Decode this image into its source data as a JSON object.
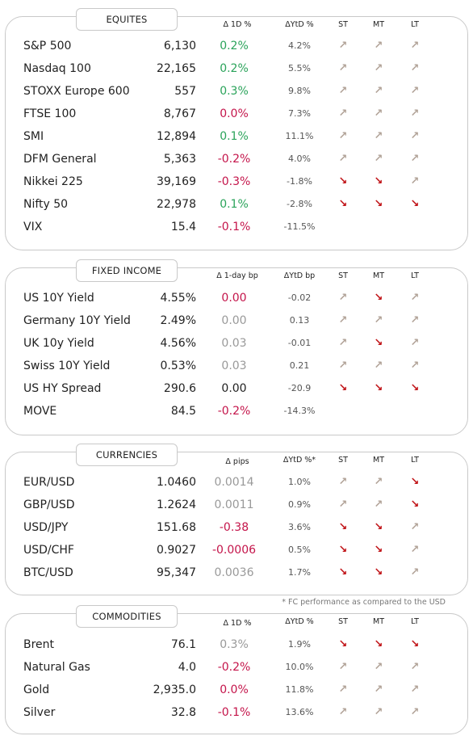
{
  "colors": {
    "pos": "#2aa35a",
    "neg": "#c4144a",
    "neutral": "#999999",
    "up_arrow": "#b2a398",
    "down_arrow": "#c01216",
    "text": "#222222"
  },
  "sections": [
    {
      "title": "EQUITES",
      "headers": {
        "chg": "Δ 1D %",
        "ytd": "ΔYtD %",
        "st": "ST",
        "mt": "MT",
        "lt": "LT"
      },
      "rows": [
        {
          "name": "S&P 500",
          "value": "6,130",
          "chg": "0.2%",
          "chg_tone": "pos",
          "ytd": "4.2%",
          "st": "up",
          "mt": "up",
          "lt": "up"
        },
        {
          "name": "Nasdaq 100",
          "value": "22,165",
          "chg": "0.2%",
          "chg_tone": "pos",
          "ytd": "5.5%",
          "st": "up",
          "mt": "up",
          "lt": "up"
        },
        {
          "name": "STOXX Europe 600",
          "value": "557",
          "chg": "0.3%",
          "chg_tone": "pos",
          "ytd": "9.8%",
          "st": "up",
          "mt": "up",
          "lt": "up"
        },
        {
          "name": "FTSE 100",
          "value": "8,767",
          "chg": "0.0%",
          "chg_tone": "neg",
          "ytd": "7.3%",
          "st": "up",
          "mt": "up",
          "lt": "up"
        },
        {
          "name": "SMI",
          "value": "12,894",
          "chg": "0.1%",
          "chg_tone": "pos",
          "ytd": "11.1%",
          "st": "up",
          "mt": "up",
          "lt": "up"
        },
        {
          "name": "DFM General",
          "value": "5,363",
          "chg": "-0.2%",
          "chg_tone": "neg",
          "ytd": "4.0%",
          "st": "up",
          "mt": "up",
          "lt": "up"
        },
        {
          "name": "Nikkei 225",
          "value": "39,169",
          "chg": "-0.3%",
          "chg_tone": "neg",
          "ytd": "-1.8%",
          "st": "down",
          "mt": "down",
          "lt": "up"
        },
        {
          "name": "Nifty  50",
          "value": "22,978",
          "chg": "0.1%",
          "chg_tone": "pos",
          "ytd": "-2.8%",
          "st": "down",
          "mt": "down",
          "lt": "down"
        },
        {
          "name": "VIX",
          "value": "15.4",
          "chg": "-0.1%",
          "chg_tone": "neg",
          "ytd": "-11.5%",
          "st": "",
          "mt": "",
          "lt": ""
        }
      ]
    },
    {
      "title": "FIXED INCOME",
      "headers": {
        "chg": "Δ 1-day bp",
        "ytd": "ΔYtD bp",
        "st": "ST",
        "mt": "MT",
        "lt": "LT"
      },
      "rows": [
        {
          "name": "US 10Y Yield",
          "value": "4.55%",
          "chg": "0.00",
          "chg_tone": "neg",
          "ytd": "-0.02",
          "st": "up",
          "mt": "down",
          "lt": "up"
        },
        {
          "name": "Germany 10Y Yield",
          "value": "2.49%",
          "chg": "0.00",
          "chg_tone": "neutral",
          "ytd": "0.13",
          "st": "up",
          "mt": "up",
          "lt": "up"
        },
        {
          "name": "UK 10y Yield",
          "value": "4.56%",
          "chg": "0.03",
          "chg_tone": "neutral",
          "ytd": "-0.01",
          "st": "up",
          "mt": "down",
          "lt": "up"
        },
        {
          "name": "Swiss 10Y Yield",
          "value": "0.53%",
          "chg": "0.03",
          "chg_tone": "neutral",
          "ytd": "0.21",
          "st": "up",
          "mt": "up",
          "lt": "up"
        },
        {
          "name": "US HY Spread",
          "value": "290.6",
          "chg": "0.00",
          "chg_tone": "text",
          "ytd": "-20.9",
          "st": "down",
          "mt": "down",
          "lt": "down"
        },
        {
          "name": "MOVE",
          "value": "84.5",
          "chg": "-0.2%",
          "chg_tone": "neg",
          "ytd": "-14.3%",
          "st": "",
          "mt": "",
          "lt": ""
        }
      ]
    },
    {
      "title": "CURRENCIES",
      "headers": {
        "chg": "Δ pips",
        "ytd": "ΔYtD %*",
        "st": "ST",
        "mt": "MT",
        "lt": "LT"
      },
      "rows": [
        {
          "name": "EUR/USD",
          "value": "1.0460",
          "chg": "0.0014",
          "chg_tone": "neutral",
          "ytd": "1.0%",
          "st": "up",
          "mt": "up",
          "lt": "down"
        },
        {
          "name": "GBP/USD",
          "value": "1.2624",
          "chg": "0.0011",
          "chg_tone": "neutral",
          "ytd": "0.9%",
          "st": "up",
          "mt": "up",
          "lt": "down"
        },
        {
          "name": "USD/JPY",
          "value": "151.68",
          "chg": "-0.38",
          "chg_tone": "neg",
          "ytd": "3.6%",
          "st": "down",
          "mt": "down",
          "lt": "up"
        },
        {
          "name": "USD/CHF",
          "value": "0.9027",
          "chg": "-0.0006",
          "chg_tone": "neg",
          "ytd": "0.5%",
          "st": "down",
          "mt": "down",
          "lt": "up"
        },
        {
          "name": "BTC/USD",
          "value": "95,347",
          "chg": "0.0036",
          "chg_tone": "neutral",
          "ytd": "1.7%",
          "st": "down",
          "mt": "down",
          "lt": "up"
        }
      ]
    },
    {
      "title": "COMMODITIES",
      "headers": {
        "chg": "Δ 1D %",
        "ytd": "ΔYtD %",
        "st": "ST",
        "mt": "MT",
        "lt": "LT"
      },
      "rows": [
        {
          "name": "Brent",
          "value": "76.1",
          "chg": "0.3%",
          "chg_tone": "neutral",
          "ytd": "1.9%",
          "st": "down",
          "mt": "down",
          "lt": "down"
        },
        {
          "name": "Natural Gas",
          "value": "4.0",
          "chg": "-0.2%",
          "chg_tone": "neg",
          "ytd": "10.0%",
          "st": "up",
          "mt": "up",
          "lt": "up"
        },
        {
          "name": "Gold",
          "value": "2,935.0",
          "chg": "0.0%",
          "chg_tone": "neg",
          "ytd": "11.8%",
          "st": "up",
          "mt": "up",
          "lt": "up"
        },
        {
          "name": "Silver",
          "value": "32.8",
          "chg": "-0.1%",
          "chg_tone": "neg",
          "ytd": "13.6%",
          "st": "up",
          "mt": "up",
          "lt": "up"
        }
      ]
    }
  ],
  "footnote": "* FC performance as compared to the USD"
}
